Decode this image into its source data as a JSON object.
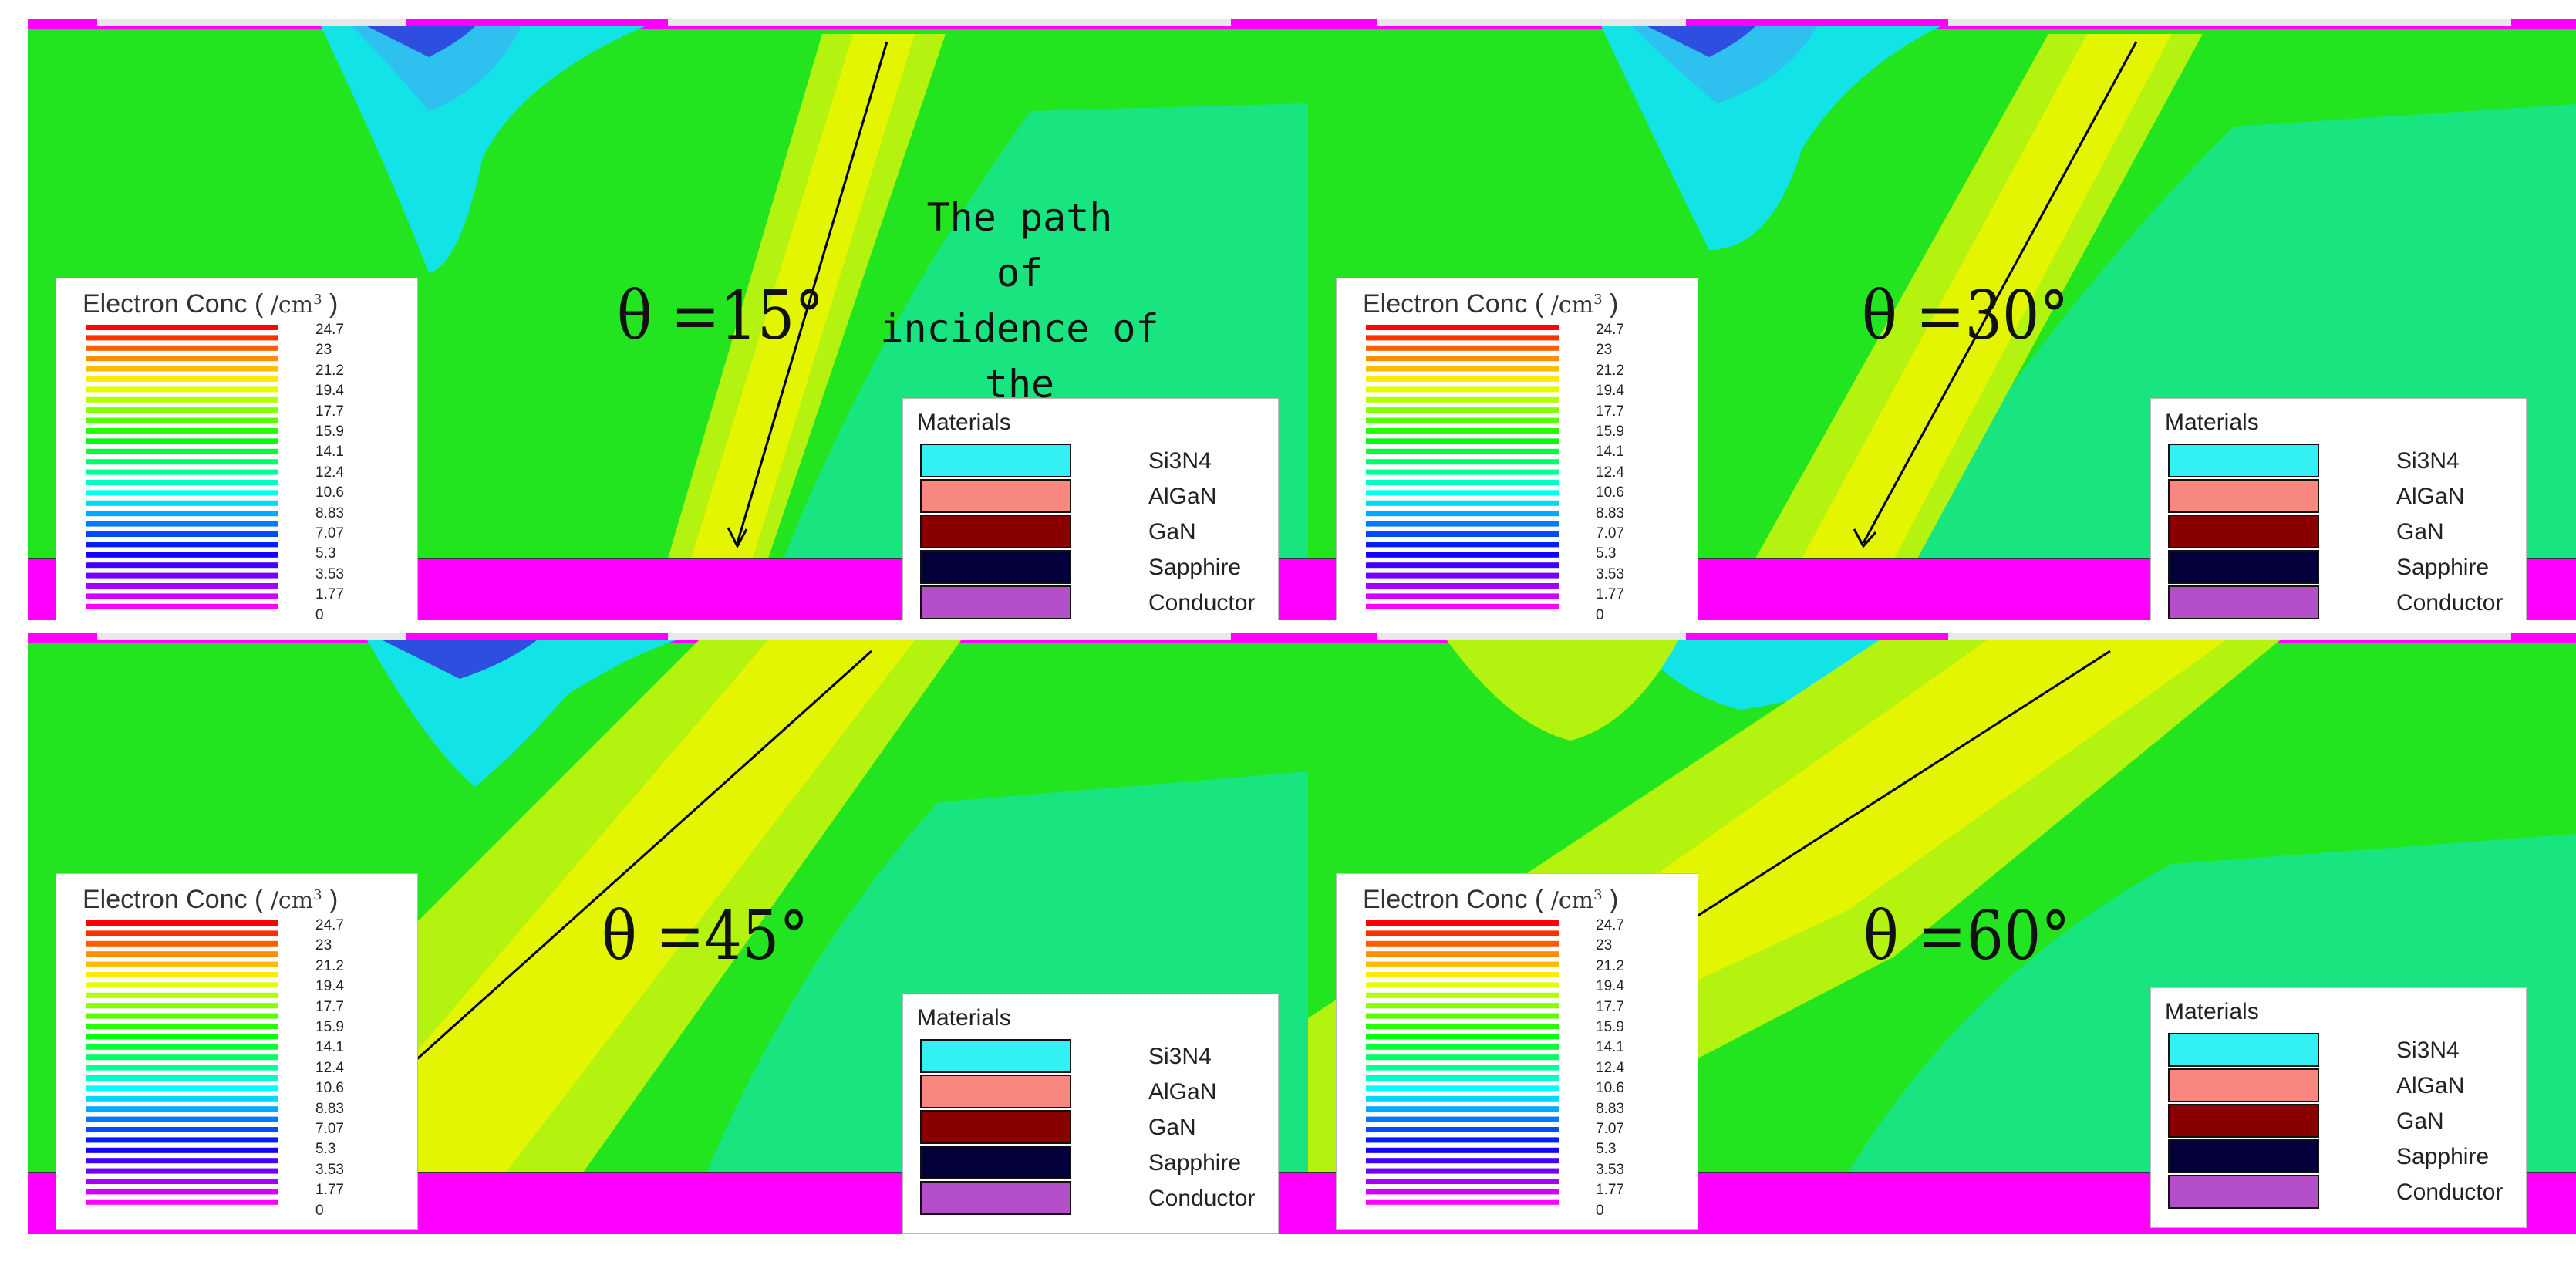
{
  "path_note": "The path\nof\nincidence of the\nparticle",
  "panels": [
    {
      "id": "p15",
      "angle_label": "θ =15°",
      "angle": 15,
      "has_arrow": true
    },
    {
      "id": "p30",
      "angle_label": "θ =30°",
      "angle": 30,
      "has_arrow": true
    },
    {
      "id": "p45",
      "angle_label": "θ =45°",
      "angle": 45,
      "has_arrow": false
    },
    {
      "id": "p60",
      "angle_label": "θ =60°",
      "angle": 60,
      "has_arrow": false
    }
  ],
  "legend_conc": {
    "title": "Electron Conc",
    "unit_prefix": "/cm",
    "unit_exp": "3",
    "ticks": [
      "24.7",
      "23",
      "21.2",
      "19.4",
      "17.7",
      "15.9",
      "14.1",
      "12.4",
      "10.6",
      "8.83",
      "7.07",
      "5.3",
      "3.53",
      "1.77",
      "0"
    ]
  },
  "legend_materials": {
    "title": "Materials",
    "items": [
      {
        "label": "Si3N4",
        "color": "#33f0f5"
      },
      {
        "label": "AlGaN",
        "color": "#f8887f"
      },
      {
        "label": "GaN",
        "color": "#8a0000"
      },
      {
        "label": "Sapphire",
        "color": "#04003a"
      },
      {
        "label": "Conductor",
        "color": "#b54ec9"
      }
    ]
  },
  "colors": {
    "background_field": "#22e51f",
    "substrate": "#ff00ff",
    "track_yellow": "#e3f500",
    "track_light": "#b4f20f",
    "depletion_cyan": "#11e3e6",
    "depletion_blue": "#2e4ee0",
    "lower_teal": "#18e580"
  }
}
